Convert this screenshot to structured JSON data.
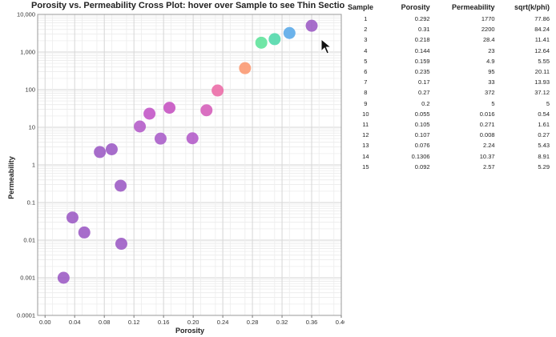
{
  "chart_data": {
    "type": "scatter",
    "title": "Porosity vs. Permeability Cross Plot: hover over Sample to see Thin Section",
    "xlabel": "Porosity",
    "ylabel": "Permeability",
    "xlim": [
      -0.01,
      0.4
    ],
    "ylim": [
      0.0001,
      10000
    ],
    "y_scale": "log",
    "grid": true,
    "x_tick_labels": [
      "0.00",
      "0.04",
      "0.08",
      "0.12",
      "0.16",
      "0.20",
      "0.24",
      "0.28",
      "0.32",
      "0.36",
      "0.40"
    ],
    "y_tick_labels": [
      "0.0001",
      "0.001",
      "0.01",
      "0.1",
      "1",
      "10",
      "100",
      "1,000",
      "10,000"
    ],
    "points": [
      {
        "x": 0.025,
        "y": 0.001,
        "color": "#9b59c4"
      },
      {
        "x": 0.037,
        "y": 0.04,
        "color": "#9b59c4"
      },
      {
        "x": 0.053,
        "y": 0.016,
        "color": "#9b59c4"
      },
      {
        "x": 0.074,
        "y": 2.2,
        "color": "#9b59c4"
      },
      {
        "x": 0.09,
        "y": 2.6,
        "color": "#9b59c4"
      },
      {
        "x": 0.102,
        "y": 0.28,
        "color": "#9b59c4"
      },
      {
        "x": 0.103,
        "y": 0.008,
        "color": "#9b59c4"
      },
      {
        "x": 0.128,
        "y": 10.5,
        "color": "#b35ac8"
      },
      {
        "x": 0.141,
        "y": 23,
        "color": "#c253c6"
      },
      {
        "x": 0.156,
        "y": 5,
        "color": "#a85bc8"
      },
      {
        "x": 0.168,
        "y": 33,
        "color": "#c550c0"
      },
      {
        "x": 0.199,
        "y": 5.1,
        "color": "#b35ac8"
      },
      {
        "x": 0.218,
        "y": 28.4,
        "color": "#d45bb8"
      },
      {
        "x": 0.233,
        "y": 95,
        "color": "#ec6aa6"
      },
      {
        "x": 0.27,
        "y": 372,
        "color": "#fb9770"
      },
      {
        "x": 0.292,
        "y": 1770,
        "color": "#5ce39a"
      },
      {
        "x": 0.31,
        "y": 2200,
        "color": "#4fd8aa"
      },
      {
        "x": 0.33,
        "y": 3200,
        "color": "#58a8e8"
      },
      {
        "x": 0.36,
        "y": 5000,
        "color": "#9b59c4"
      }
    ]
  },
  "table": {
    "headers": [
      "Sample",
      "Porosity",
      "Permeability",
      "sqrt(k/phi)"
    ],
    "rows": [
      [
        "1",
        "0.292",
        "1770",
        "77.86"
      ],
      [
        "2",
        "0.31",
        "2200",
        "84.24"
      ],
      [
        "3",
        "0.218",
        "28.4",
        "11.41"
      ],
      [
        "4",
        "0.144",
        "23",
        "12.64"
      ],
      [
        "5",
        "0.159",
        "4.9",
        "5.55"
      ],
      [
        "6",
        "0.235",
        "95",
        "20.11"
      ],
      [
        "7",
        "0.17",
        "33",
        "13.93"
      ],
      [
        "8",
        "0.27",
        "372",
        "37.12"
      ],
      [
        "9",
        "0.2",
        "5",
        "5"
      ],
      [
        "10",
        "0.055",
        "0.016",
        "0.54"
      ],
      [
        "11",
        "0.105",
        "0.271",
        "1.61"
      ],
      [
        "12",
        "0.107",
        "0.008",
        "0.27"
      ],
      [
        "13",
        "0.076",
        "2.24",
        "5.43"
      ],
      [
        "14",
        "0.1306",
        "10.37",
        "8.91"
      ],
      [
        "15",
        "0.092",
        "2.57",
        "5.29"
      ]
    ]
  },
  "icons": {
    "cursor": "mouse-pointer-icon"
  }
}
